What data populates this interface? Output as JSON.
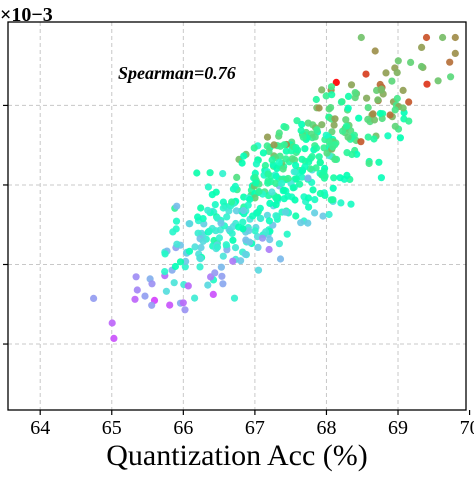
{
  "chart_data": {
    "type": "scatter",
    "xlabel": "Quantization Acc (%)",
    "ylabel": "",
    "y_multiplier_label": "×10−3",
    "annotation": "Spearman=0.76",
    "xlim": [
      63.55,
      69.95
    ],
    "ylim": [
      0,
      1
    ],
    "x_ticks": [
      "64",
      "65",
      "66",
      "67",
      "68",
      "69",
      "70"
    ],
    "x_tick_values": [
      64,
      65,
      66,
      67,
      68,
      69,
      70
    ],
    "y_tick_fractions": [
      0.17,
      0.375,
      0.58,
      0.785
    ],
    "grid": true,
    "color_scale": "rainbow",
    "point_count": 500,
    "seed": 7,
    "colors": {
      "point_edge": "none",
      "grid": "#c8c8c8",
      "axis": "#000000"
    }
  }
}
